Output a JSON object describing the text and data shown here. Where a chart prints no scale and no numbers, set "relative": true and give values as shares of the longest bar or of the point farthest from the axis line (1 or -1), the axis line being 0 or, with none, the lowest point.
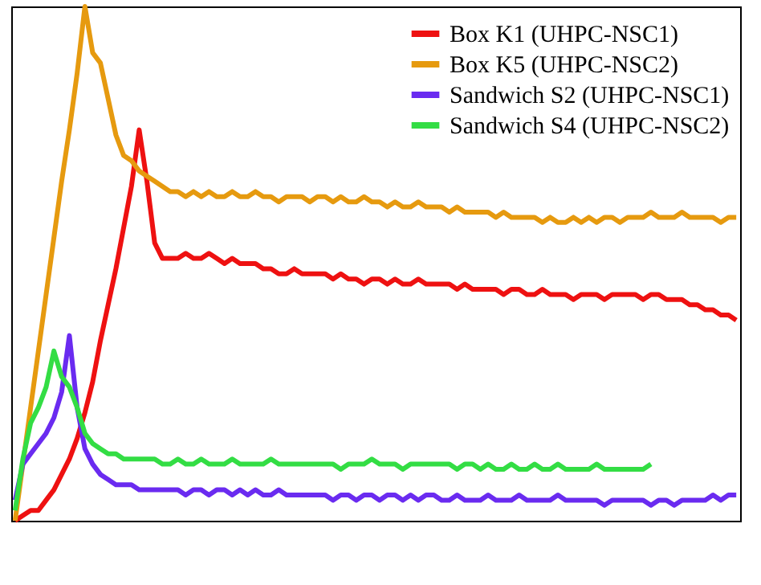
{
  "chart_data": {
    "type": "line",
    "relative": true,
    "legend": "top right",
    "categories": [
      null,
      null,
      null,
      null,
      null,
      null,
      null,
      null,
      null,
      null,
      null,
      null,
      null,
      null,
      null,
      null,
      null,
      null,
      null,
      null,
      null,
      null,
      null,
      null,
      null,
      null,
      null,
      null,
      null,
      null,
      null,
      null,
      null,
      null,
      null,
      null,
      null,
      null,
      null,
      null,
      null,
      null,
      null,
      null,
      null,
      null,
      null,
      null,
      null,
      null,
      null,
      null,
      null,
      null,
      null,
      null,
      null,
      null,
      null,
      null,
      null,
      null,
      null,
      null,
      null,
      null,
      null,
      null,
      null,
      null,
      null,
      null,
      null,
      null,
      null,
      null,
      null,
      null,
      null,
      null,
      null,
      null,
      null,
      null,
      null,
      null,
      null,
      null,
      null,
      null,
      null,
      null,
      null,
      null
    ],
    "series": [
      {
        "name": "Box K1 (UHPC-NSC1)",
        "color": "#ee1111",
        "values": [
          0,
          0.01,
          0.02,
          0.02,
          0.04,
          0.06,
          0.09,
          0.12,
          0.16,
          0.21,
          0.27,
          0.35,
          0.42,
          0.49,
          0.57,
          0.65,
          0.76,
          0.66,
          0.54,
          0.51,
          0.51,
          0.51,
          0.52,
          0.51,
          0.51,
          0.52,
          0.51,
          0.5,
          0.51,
          0.5,
          0.5,
          0.5,
          0.49,
          0.49,
          0.48,
          0.48,
          0.49,
          0.48,
          0.48,
          0.48,
          0.48,
          0.47,
          0.48,
          0.47,
          0.47,
          0.46,
          0.47,
          0.47,
          0.46,
          0.47,
          0.46,
          0.46,
          0.47,
          0.46,
          0.46,
          0.46,
          0.46,
          0.45,
          0.46,
          0.45,
          0.45,
          0.45,
          0.45,
          0.44,
          0.45,
          0.45,
          0.44,
          0.44,
          0.45,
          0.44,
          0.44,
          0.44,
          0.43,
          0.44,
          0.44,
          0.44,
          0.43,
          0.44,
          0.44,
          0.44,
          0.44,
          0.43,
          0.44,
          0.44,
          0.43,
          0.43,
          0.43,
          0.42,
          0.42,
          0.41,
          0.41,
          0.4,
          0.4,
          0.39
        ]
      },
      {
        "name": "Box K5 (UHPC-NSC2)",
        "color": "#e69a0f",
        "values": [
          0,
          0.11,
          0.22,
          0.33,
          0.44,
          0.55,
          0.66,
          0.76,
          0.87,
          1.0,
          0.91,
          0.89,
          0.82,
          0.75,
          0.71,
          0.7,
          0.68,
          0.67,
          0.66,
          0.65,
          0.64,
          0.64,
          0.63,
          0.64,
          0.63,
          0.64,
          0.63,
          0.63,
          0.64,
          0.63,
          0.63,
          0.64,
          0.63,
          0.63,
          0.62,
          0.63,
          0.63,
          0.63,
          0.62,
          0.63,
          0.63,
          0.62,
          0.63,
          0.62,
          0.62,
          0.63,
          0.62,
          0.62,
          0.61,
          0.62,
          0.61,
          0.61,
          0.62,
          0.61,
          0.61,
          0.61,
          0.6,
          0.61,
          0.6,
          0.6,
          0.6,
          0.6,
          0.59,
          0.6,
          0.59,
          0.59,
          0.59,
          0.59,
          0.58,
          0.59,
          0.58,
          0.58,
          0.59,
          0.58,
          0.59,
          0.58,
          0.59,
          0.59,
          0.58,
          0.59,
          0.59,
          0.59,
          0.6,
          0.59,
          0.59,
          0.59,
          0.6,
          0.59,
          0.59,
          0.59,
          0.59,
          0.58,
          0.59,
          0.59
        ]
      },
      {
        "name": "Sandwich S2 (UHPC-NSC1)",
        "color": "#6a2bf0",
        "values": [
          0.04,
          0.11,
          0.13,
          0.15,
          0.17,
          0.2,
          0.25,
          0.36,
          0.22,
          0.14,
          0.11,
          0.09,
          0.08,
          0.07,
          0.07,
          0.07,
          0.06,
          0.06,
          0.06,
          0.06,
          0.06,
          0.06,
          0.05,
          0.06,
          0.06,
          0.05,
          0.06,
          0.06,
          0.05,
          0.06,
          0.05,
          0.06,
          0.05,
          0.05,
          0.06,
          0.05,
          0.05,
          0.05,
          0.05,
          0.05,
          0.05,
          0.04,
          0.05,
          0.05,
          0.04,
          0.05,
          0.05,
          0.04,
          0.05,
          0.05,
          0.04,
          0.05,
          0.04,
          0.05,
          0.05,
          0.04,
          0.04,
          0.05,
          0.04,
          0.04,
          0.04,
          0.05,
          0.04,
          0.04,
          0.04,
          0.05,
          0.04,
          0.04,
          0.04,
          0.04,
          0.05,
          0.04,
          0.04,
          0.04,
          0.04,
          0.04,
          0.03,
          0.04,
          0.04,
          0.04,
          0.04,
          0.04,
          0.03,
          0.04,
          0.04,
          0.03,
          0.04,
          0.04,
          0.04,
          0.04,
          0.05,
          0.04,
          0.05,
          0.05
        ]
      },
      {
        "name": "Sandwich S4 (UHPC-NSC2)",
        "color": "#33dd44",
        "values": [
          0.02,
          0.12,
          0.19,
          0.22,
          0.26,
          0.33,
          0.28,
          0.26,
          0.22,
          0.17,
          0.15,
          0.14,
          0.13,
          0.13,
          0.12,
          0.12,
          0.12,
          0.12,
          0.12,
          0.11,
          0.11,
          0.12,
          0.11,
          0.11,
          0.12,
          0.11,
          0.11,
          0.11,
          0.12,
          0.11,
          0.11,
          0.11,
          0.11,
          0.12,
          0.11,
          0.11,
          0.11,
          0.11,
          0.11,
          0.11,
          0.11,
          0.11,
          0.1,
          0.11,
          0.11,
          0.11,
          0.12,
          0.11,
          0.11,
          0.11,
          0.1,
          0.11,
          0.11,
          0.11,
          0.11,
          0.11,
          0.11,
          0.1,
          0.11,
          0.11,
          0.1,
          0.11,
          0.1,
          0.1,
          0.11,
          0.1,
          0.1,
          0.11,
          0.1,
          0.1,
          0.11,
          0.1,
          0.1,
          0.1,
          0.1,
          0.11,
          0.1,
          0.1,
          0.1,
          0.1,
          0.1,
          0.1,
          0.11,
          null,
          null,
          null,
          null,
          null,
          null,
          null,
          null,
          null,
          null,
          null
        ]
      }
    ]
  }
}
